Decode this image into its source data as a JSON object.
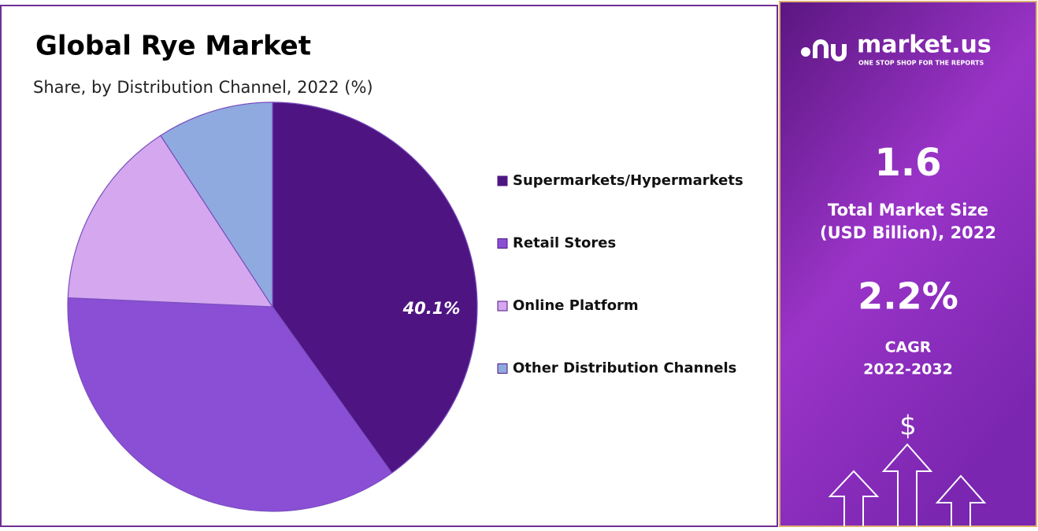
{
  "chart_data": {
    "type": "pie",
    "title": "Global Rye Market",
    "subtitle": "Share, by Distribution Channel, 2022 (%)",
    "categories": [
      "Supermarkets/Hypermarkets",
      "Retail Stores",
      "Online Platform",
      "Other Distribution Channels"
    ],
    "values": [
      40.1,
      35.6,
      15.1,
      9.2
    ],
    "value_labels": [
      "40.1%",
      null,
      null,
      null
    ],
    "colors": [
      "#4e1582",
      "#8a4fd4",
      "#d4a7ef",
      "#8faadf"
    ]
  },
  "panel": {
    "brand": "market.us",
    "tagline": "ONE STOP SHOP FOR THE REPORTS",
    "market_size": "1.6",
    "market_size_label": [
      "Total Market Size",
      "(USD Billion), 2022"
    ],
    "cagr": "2.2%",
    "cagr_label": [
      "CAGR",
      "2022-2032"
    ],
    "icon": "$"
  }
}
